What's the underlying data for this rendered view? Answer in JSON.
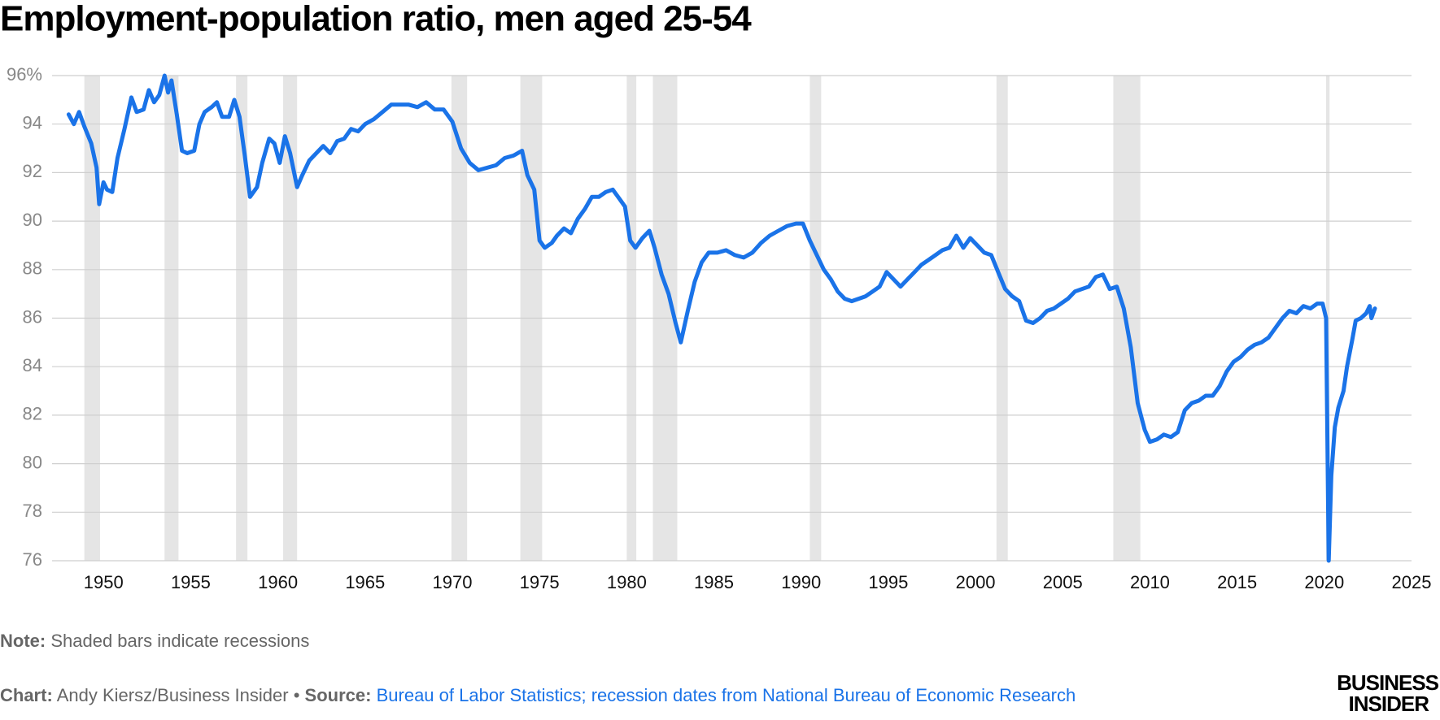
{
  "chart_data": {
    "type": "line",
    "title": "Employment-population ratio, men aged 25-54",
    "note_label": "Note:",
    "note": "Shaded bars indicate recessions",
    "chart_label": "Chart:",
    "chart_credit": "Andy Kiersz/Business Insider",
    "source_label": "Source:",
    "source": "Bureau of Labor Statistics; recession dates from National Bureau of Economic Research",
    "logo": [
      "BUSINESS",
      "INSIDER"
    ],
    "color": "#1a73e8",
    "recession_color": "#e5e5e5",
    "grid": true,
    "xlim": [
      1947.05,
      2025
    ],
    "ylim": [
      76,
      96
    ],
    "xticks": [
      1950,
      1955,
      1960,
      1965,
      1970,
      1975,
      1980,
      1985,
      1990,
      1995,
      2000,
      2005,
      2010,
      2015,
      2020,
      2025
    ],
    "yticks": [
      76,
      78,
      80,
      82,
      84,
      86,
      88,
      90,
      92,
      94,
      {
        "value": 96,
        "label": "96%"
      }
    ],
    "recessions": [
      [
        1948.9,
        1949.8
      ],
      [
        1953.5,
        1954.3
      ],
      [
        1957.6,
        1958.25
      ],
      [
        1960.3,
        1961.1
      ],
      [
        1969.95,
        1970.85
      ],
      [
        1973.9,
        1975.15
      ],
      [
        1980.0,
        1980.55
      ],
      [
        1981.5,
        1982.9
      ],
      [
        1990.5,
        1991.15
      ],
      [
        2001.2,
        2001.85
      ],
      [
        2007.9,
        2009.45
      ],
      [
        2020.1,
        2020.3
      ]
    ],
    "x": [
      1948.0,
      1948.3,
      1948.6,
      1948.9,
      1949.3,
      1949.6,
      1949.75,
      1950.0,
      1950.2,
      1950.5,
      1950.8,
      1951.2,
      1951.6,
      1951.9,
      1952.3,
      1952.6,
      1952.9,
      1953.2,
      1953.5,
      1953.7,
      1953.9,
      1954.2,
      1954.5,
      1954.8,
      1955.2,
      1955.5,
      1955.8,
      1956.2,
      1956.5,
      1956.8,
      1957.2,
      1957.5,
      1957.8,
      1958.1,
      1958.4,
      1958.8,
      1959.1,
      1959.5,
      1959.8,
      1960.1,
      1960.4,
      1960.7,
      1961.1,
      1961.4,
      1961.8,
      1962.2,
      1962.6,
      1963.0,
      1963.4,
      1963.8,
      1964.2,
      1964.6,
      1965.0,
      1965.5,
      1966.0,
      1966.5,
      1967.0,
      1967.5,
      1968.0,
      1968.5,
      1969.0,
      1969.5,
      1970.0,
      1970.5,
      1971.0,
      1971.5,
      1972.0,
      1972.5,
      1973.0,
      1973.5,
      1974.0,
      1974.3,
      1974.7,
      1975.0,
      1975.3,
      1975.7,
      1976.0,
      1976.4,
      1976.8,
      1977.2,
      1977.6,
      1978.0,
      1978.4,
      1978.8,
      1979.2,
      1979.6,
      1979.9,
      1980.2,
      1980.5,
      1980.9,
      1981.3,
      1981.6,
      1982.0,
      1982.4,
      1982.8,
      1983.1,
      1983.5,
      1983.9,
      1984.3,
      1984.7,
      1985.2,
      1985.7,
      1986.2,
      1986.7,
      1987.2,
      1987.7,
      1988.2,
      1988.7,
      1989.2,
      1989.7,
      1990.1,
      1990.5,
      1990.9,
      1991.3,
      1991.7,
      1992.1,
      1992.5,
      1992.9,
      1993.3,
      1993.7,
      1994.1,
      1994.5,
      1994.9,
      1995.3,
      1995.7,
      1996.1,
      1996.5,
      1996.9,
      1997.3,
      1997.7,
      1998.1,
      1998.5,
      1998.9,
      1999.3,
      1999.7,
      2000.1,
      2000.5,
      2000.9,
      2001.3,
      2001.7,
      2002.1,
      2002.5,
      2002.9,
      2003.3,
      2003.7,
      2004.1,
      2004.5,
      2004.9,
      2005.3,
      2005.7,
      2006.1,
      2006.5,
      2006.9,
      2007.3,
      2007.7,
      2008.1,
      2008.5,
      2008.9,
      2009.3,
      2009.7,
      2010.0,
      2010.4,
      2010.8,
      2011.2,
      2011.6,
      2012.0,
      2012.4,
      2012.8,
      2013.2,
      2013.6,
      2014.0,
      2014.4,
      2014.8,
      2015.2,
      2015.6,
      2016.0,
      2016.4,
      2016.8,
      2017.2,
      2017.6,
      2018.0,
      2018.4,
      2018.8,
      2019.2,
      2019.6,
      2019.9,
      2020.1,
      2020.25,
      2020.4,
      2020.6,
      2020.8,
      2021.1,
      2021.3,
      2021.6,
      2021.8,
      2022.1,
      2022.4,
      2022.6,
      2022.7,
      2022.9
    ],
    "values": [
      94.4,
      94.0,
      94.5,
      93.9,
      93.2,
      92.2,
      90.7,
      91.6,
      91.3,
      91.2,
      92.6,
      93.8,
      95.1,
      94.5,
      94.6,
      95.4,
      94.9,
      95.2,
      96.0,
      95.3,
      95.8,
      94.4,
      92.9,
      92.8,
      92.9,
      94.0,
      94.5,
      94.7,
      94.9,
      94.3,
      94.3,
      95.0,
      94.3,
      92.7,
      91.0,
      91.4,
      92.4,
      93.4,
      93.2,
      92.4,
      93.5,
      92.8,
      91.4,
      91.9,
      92.5,
      92.8,
      93.1,
      92.8,
      93.3,
      93.4,
      93.8,
      93.7,
      94.0,
      94.2,
      94.5,
      94.8,
      94.8,
      94.8,
      94.7,
      94.9,
      94.6,
      94.6,
      94.1,
      93.0,
      92.4,
      92.1,
      92.2,
      92.3,
      92.6,
      92.7,
      92.9,
      91.9,
      91.3,
      89.2,
      88.9,
      89.1,
      89.4,
      89.7,
      89.5,
      90.1,
      90.5,
      91.0,
      91.0,
      91.2,
      91.3,
      90.9,
      90.6,
      89.2,
      88.9,
      89.3,
      89.6,
      88.9,
      87.8,
      87.0,
      85.8,
      85.0,
      86.3,
      87.5,
      88.3,
      88.7,
      88.7,
      88.8,
      88.6,
      88.5,
      88.7,
      89.1,
      89.4,
      89.6,
      89.8,
      89.9,
      89.9,
      89.2,
      88.6,
      88.0,
      87.6,
      87.1,
      86.8,
      86.7,
      86.8,
      86.9,
      87.1,
      87.3,
      87.9,
      87.6,
      87.3,
      87.6,
      87.9,
      88.2,
      88.4,
      88.6,
      88.8,
      88.9,
      89.4,
      88.9,
      89.3,
      89.0,
      88.7,
      88.6,
      87.9,
      87.2,
      86.9,
      86.7,
      85.9,
      85.8,
      86.0,
      86.3,
      86.4,
      86.6,
      86.8,
      87.1,
      87.2,
      87.3,
      87.7,
      87.8,
      87.2,
      87.3,
      86.4,
      84.8,
      82.5,
      81.4,
      80.9,
      81.0,
      81.2,
      81.1,
      81.3,
      82.2,
      82.5,
      82.6,
      82.8,
      82.8,
      83.2,
      83.8,
      84.2,
      84.4,
      84.7,
      84.9,
      85.0,
      85.2,
      85.6,
      86.0,
      86.3,
      86.2,
      86.5,
      86.4,
      86.6,
      86.6,
      86.0,
      76.0,
      79.5,
      81.5,
      82.3,
      83.0,
      84.0,
      85.1,
      85.9,
      86.0,
      86.2,
      86.5,
      86.0,
      86.4
    ]
  }
}
